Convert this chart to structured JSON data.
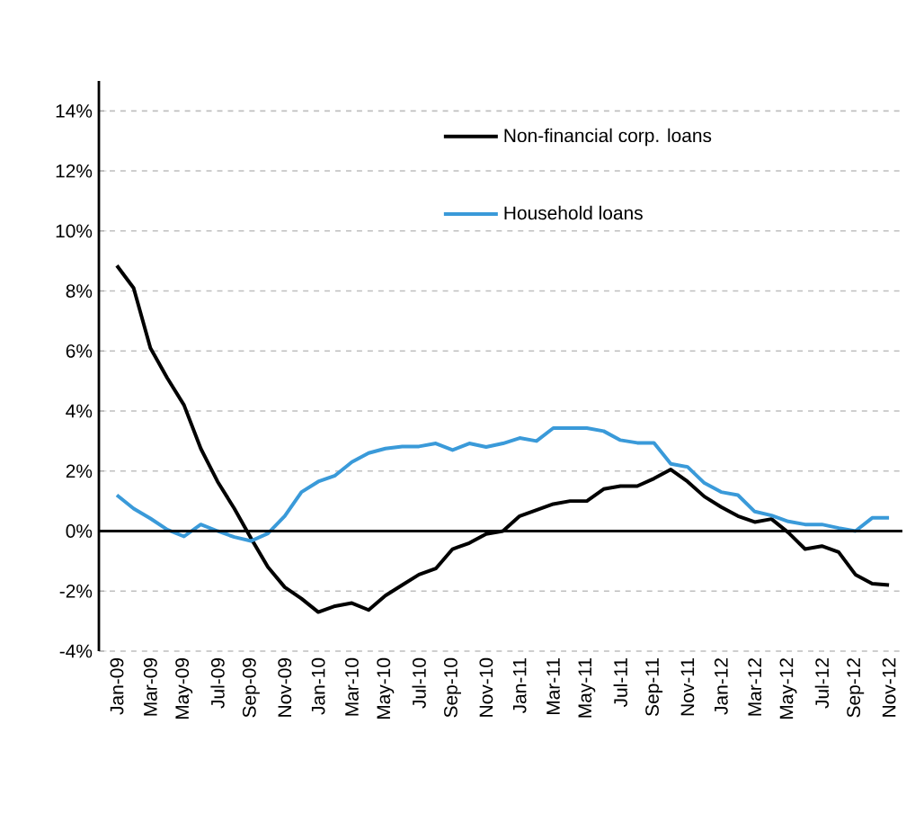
{
  "chart_data": {
    "type": "line",
    "categories": [
      "Jan-09",
      null,
      "Mar-09",
      null,
      "May-09",
      null,
      "Jul-09",
      null,
      "Sep-09",
      null,
      "Nov-09",
      null,
      "Jan-10",
      null,
      "Mar-10",
      null,
      "May-10",
      null,
      "Jul-10",
      null,
      "Sep-10",
      null,
      "Nov-10",
      null,
      "Jan-11",
      null,
      "Mar-11",
      null,
      "May-11",
      null,
      "Jul-11",
      null,
      "Sep-11",
      null,
      "Nov-11",
      null,
      "Jan-12",
      null,
      "Mar-12",
      null,
      "May-12",
      null,
      "Jul-12",
      null,
      "Sep-12",
      null,
      "Nov-12"
    ],
    "series": [
      {
        "name": "Non-financial corp. loans",
        "color": "#000000",
        "values": [
          8.85,
          8.1,
          6.1,
          5.1,
          4.2,
          2.75,
          1.65,
          0.75,
          -0.25,
          -1.2,
          -1.87,
          -2.25,
          -2.7,
          -2.5,
          -2.4,
          -2.63,
          -2.15,
          -1.8,
          -1.45,
          -1.25,
          -0.6,
          -0.4,
          -0.1,
          0.0,
          0.5,
          0.7,
          0.9,
          1.0,
          1.0,
          1.4,
          1.5,
          1.5,
          1.75,
          2.05,
          1.65,
          1.15,
          0.8,
          0.5,
          0.3,
          0.4,
          -0.05,
          -0.6,
          -0.5,
          -0.7,
          -1.45,
          -1.75,
          -1.8
        ]
      },
      {
        "name": "Household loans",
        "color": "#3a9ad9",
        "values": [
          1.2,
          0.75,
          0.42,
          0.05,
          -0.18,
          0.22,
          0.0,
          -0.2,
          -0.33,
          -0.08,
          0.5,
          1.3,
          1.65,
          1.85,
          2.3,
          2.6,
          2.75,
          2.82,
          2.82,
          2.92,
          2.7,
          2.92,
          2.8,
          2.92,
          3.1,
          3.0,
          3.43,
          3.43,
          3.43,
          3.33,
          3.03,
          2.94,
          2.94,
          2.24,
          2.14,
          1.6,
          1.3,
          1.2,
          0.65,
          0.52,
          0.32,
          0.22,
          0.22,
          0.1,
          0.0,
          0.44,
          0.44
        ]
      }
    ],
    "ylim": [
      -4,
      15
    ],
    "yticks": [
      {
        "value": -4,
        "label": "-4%"
      },
      {
        "value": -2,
        "label": "-2%"
      },
      {
        "value": 0,
        "label": "0%"
      },
      {
        "value": 2,
        "label": "2%"
      },
      {
        "value": 4,
        "label": "4%"
      },
      {
        "value": 6,
        "label": "6%"
      },
      {
        "value": 8,
        "label": "8%"
      },
      {
        "value": 10,
        "label": "10%"
      },
      {
        "value": 12,
        "label": "12%"
      },
      {
        "value": 14,
        "label": "14%"
      }
    ],
    "grid": "y",
    "legend": "top right",
    "marker": "none",
    "line_style": "solid"
  }
}
